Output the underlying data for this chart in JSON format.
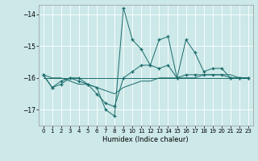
{
  "title": "",
  "xlabel": "Humidex (Indice chaleur)",
  "xlim": [
    -0.5,
    23.5
  ],
  "ylim": [
    -17.5,
    -13.7
  ],
  "yticks": [
    -17,
    -16,
    -15,
    -14
  ],
  "xticks": [
    0,
    1,
    2,
    3,
    4,
    5,
    6,
    7,
    8,
    9,
    10,
    11,
    12,
    13,
    14,
    15,
    16,
    17,
    18,
    19,
    20,
    21,
    22,
    23
  ],
  "bg_color": "#cce8e8",
  "line_color": "#1a6b6b",
  "grid_color": "#ffffff",
  "series": [
    {
      "x": [
        0,
        1,
        2,
        3,
        4,
        5,
        6,
        7,
        8,
        9,
        10,
        11,
        12,
        13,
        14,
        15,
        16,
        17,
        18,
        19,
        20,
        21,
        22,
        23
      ],
      "y": [
        -15.9,
        -16.3,
        -16.1,
        -16.0,
        -16.0,
        -16.2,
        -16.3,
        -17.0,
        -17.2,
        -13.8,
        -14.8,
        -15.1,
        -15.6,
        -14.8,
        -14.7,
        -16.0,
        -14.8,
        -15.2,
        -15.8,
        -15.7,
        -15.7,
        -16.0,
        -16.0,
        -16.0
      ],
      "marker": "+"
    },
    {
      "x": [
        0,
        1,
        2,
        3,
        4,
        5,
        6,
        7,
        8,
        9,
        10,
        11,
        12,
        13,
        14,
        15,
        16,
        17,
        18,
        19,
        20,
        21,
        22,
        23
      ],
      "y": [
        -15.9,
        -16.3,
        -16.2,
        -16.0,
        -16.1,
        -16.2,
        -16.5,
        -16.8,
        -16.9,
        -16.0,
        -15.8,
        -15.6,
        -15.6,
        -15.7,
        -15.6,
        -16.0,
        -15.9,
        -15.9,
        -15.9,
        -15.9,
        -15.9,
        -16.0,
        -16.0,
        -16.0
      ],
      "marker": "+"
    },
    {
      "x": [
        0,
        1,
        2,
        3,
        4,
        5,
        6,
        7,
        8,
        9,
        10,
        11,
        12,
        13,
        14,
        15,
        16,
        17,
        18,
        19,
        20,
        21,
        22,
        23
      ],
      "y": [
        -16.0,
        -16.0,
        -16.0,
        -16.0,
        -16.0,
        -16.0,
        -16.0,
        -16.0,
        -16.0,
        -16.0,
        -16.0,
        -16.0,
        -16.0,
        -16.0,
        -16.0,
        -16.0,
        -16.0,
        -16.0,
        -16.0,
        -16.0,
        -16.0,
        -16.0,
        -16.0,
        -16.0
      ],
      "marker": null
    },
    {
      "x": [
        0,
        1,
        2,
        3,
        4,
        5,
        6,
        7,
        8,
        9,
        10,
        11,
        12,
        13,
        14,
        15,
        16,
        17,
        18,
        19,
        20,
        21,
        22,
        23
      ],
      "y": [
        -15.9,
        -16.0,
        -16.0,
        -16.1,
        -16.2,
        -16.2,
        -16.3,
        -16.4,
        -16.5,
        -16.3,
        -16.2,
        -16.1,
        -16.1,
        -16.0,
        -16.0,
        -16.0,
        -16.0,
        -16.0,
        -15.9,
        -15.9,
        -15.9,
        -15.9,
        -16.0,
        -16.0
      ],
      "marker": null
    }
  ]
}
